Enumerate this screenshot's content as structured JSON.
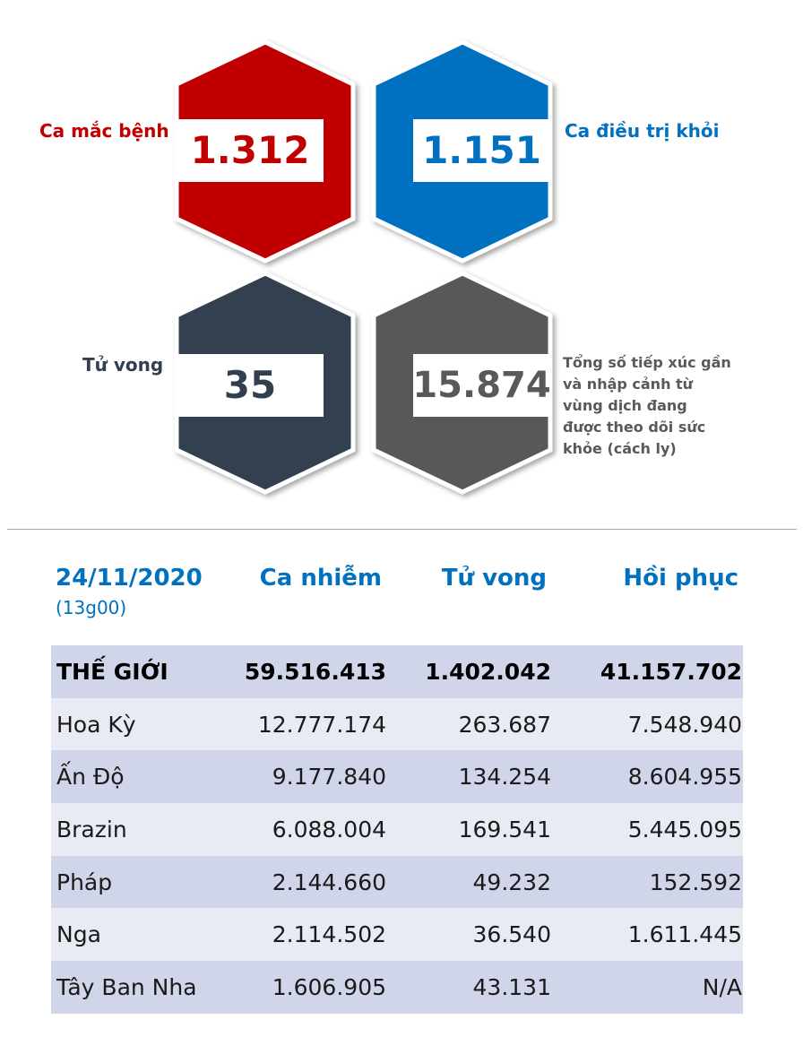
{
  "stats": {
    "cases": {
      "label": "Ca mắc bệnh",
      "value": "1.312",
      "color": "#c00000"
    },
    "recovered": {
      "label": "Ca điều trị khỏi",
      "value": "1.151",
      "color": "#0070c0"
    },
    "deaths": {
      "label": "Tử vong",
      "value": "35",
      "color": "#323f4f"
    },
    "monitored": {
      "value": "15.874",
      "color": "#595959",
      "note_lines": [
        "Tổng số tiếp xúc gần",
        "và nhập cảnh từ",
        "vùng dịch đang",
        "được theo dõi sức",
        "khỏe (cách ly)"
      ]
    }
  },
  "table": {
    "date": "24/11/2020",
    "time": "(13g00)",
    "headers": [
      "Ca nhiễm",
      "Tử vong",
      "Hồi phục"
    ],
    "rows": [
      {
        "name": "THẾ GIỚI",
        "cases": "59.516.413",
        "deaths": "1.402.042",
        "recovered": "41.157.702"
      },
      {
        "name": "Hoa Kỳ",
        "cases": "12.777.174",
        "deaths": "263.687",
        "recovered": "7.548.940"
      },
      {
        "name": "Ấn Độ",
        "cases": "9.177.840",
        "deaths": "134.254",
        "recovered": "8.604.955"
      },
      {
        "name": "Brazin",
        "cases": "6.088.004",
        "deaths": "169.541",
        "recovered": "5.445.095"
      },
      {
        "name": "Pháp",
        "cases": "2.144.660",
        "deaths": "49.232",
        "recovered": "152.592"
      },
      {
        "name": "Nga",
        "cases": "2.114.502",
        "deaths": "36.540",
        "recovered": "1.611.445"
      },
      {
        "name": "Tây Ban Nha",
        "cases": "1.606.905",
        "deaths": "43.131",
        "recovered": "N/A"
      }
    ]
  }
}
